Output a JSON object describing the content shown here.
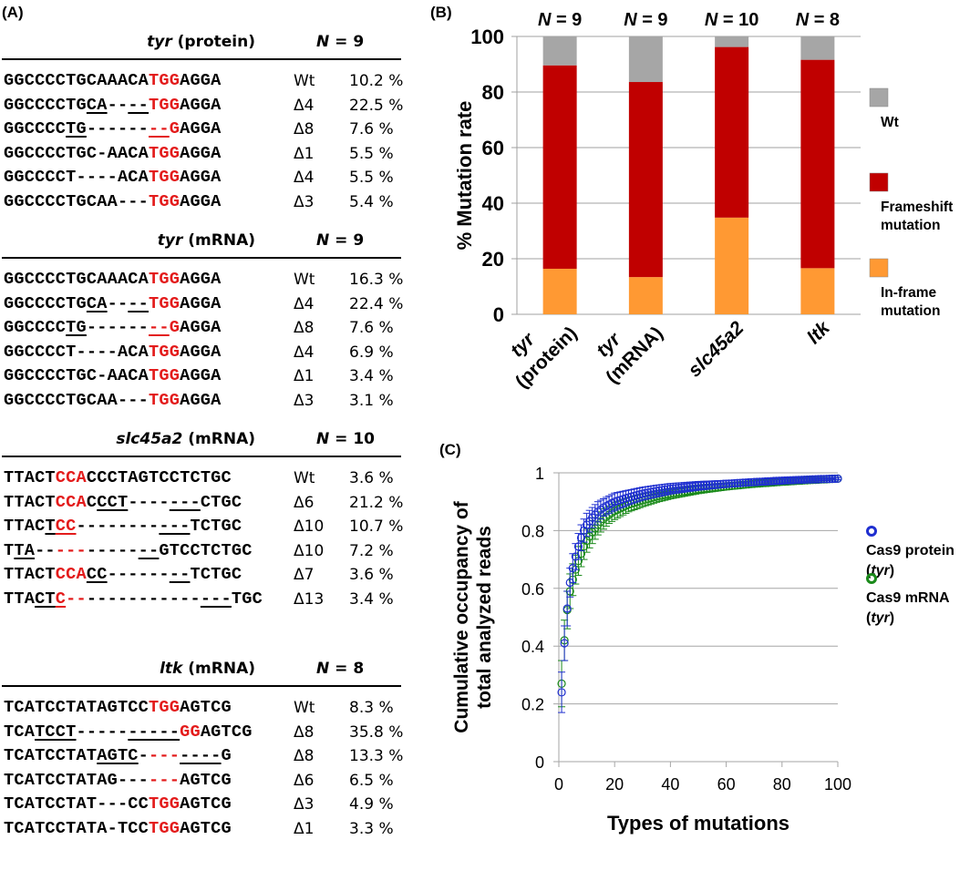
{
  "panel_a": {
    "label": "(A)",
    "blocks": [
      {
        "gene": "tyr",
        "type": "(protein)",
        "n_label": "N",
        "n_value": "= 9",
        "rows": [
          {
            "seq": [
              [
                "GGCCCCTGCAAACA",
                ""
              ],
              [
                "TGG",
                "r"
              ],
              [
                "AGGA",
                ""
              ]
            ],
            "mut": "Wt",
            "pct": "10.2 %"
          },
          {
            "seq": [
              [
                "GGCCCCTG",
                ""
              ],
              [
                "CA",
                "u"
              ],
              [
                "--",
                ""
              ],
              [
                "--",
                "u"
              ],
              [
                "TGG",
                "r"
              ],
              [
                "AGGA",
                ""
              ]
            ],
            "mut": "Δ4",
            "pct": "22.5 %"
          },
          {
            "seq": [
              [
                "GGCCCC",
                ""
              ],
              [
                "TG",
                "u"
              ],
              [
                "------",
                ""
              ],
              [
                "--",
                "ru"
              ],
              [
                "G",
                "r"
              ],
              [
                "AGGA",
                ""
              ]
            ],
            "mut": "Δ8",
            "pct": "7.6 %"
          },
          {
            "seq": [
              [
                "GGCCCCTGC-AACA",
                ""
              ],
              [
                "TGG",
                "r"
              ],
              [
                "AGGA",
                ""
              ]
            ],
            "mut": "Δ1",
            "pct": "5.5 %"
          },
          {
            "seq": [
              [
                "GGCCCCT----ACA",
                ""
              ],
              [
                "TGG",
                "r"
              ],
              [
                "AGGA",
                ""
              ]
            ],
            "mut": "Δ4",
            "pct": "5.5 %"
          },
          {
            "seq": [
              [
                "GGCCCCTGCAA---",
                ""
              ],
              [
                "TGG",
                "r"
              ],
              [
                "AGGA",
                ""
              ]
            ],
            "mut": "Δ3",
            "pct": "5.4 %"
          }
        ]
      },
      {
        "gene": "tyr",
        "type": "(mRNA)",
        "n_label": "N",
        "n_value": "= 9",
        "rows": [
          {
            "seq": [
              [
                "GGCCCCTGCAAACA",
                ""
              ],
              [
                "TGG",
                "r"
              ],
              [
                "AGGA",
                ""
              ]
            ],
            "mut": "Wt",
            "pct": "16.3 %"
          },
          {
            "seq": [
              [
                "GGCCCCTG",
                ""
              ],
              [
                "CA",
                "u"
              ],
              [
                "--",
                ""
              ],
              [
                "--",
                "u"
              ],
              [
                "TGG",
                "r"
              ],
              [
                "AGGA",
                ""
              ]
            ],
            "mut": "Δ4",
            "pct": "22.4 %"
          },
          {
            "seq": [
              [
                "GGCCCC",
                ""
              ],
              [
                "TG",
                "u"
              ],
              [
                "------",
                ""
              ],
              [
                "--",
                "ru"
              ],
              [
                "G",
                "r"
              ],
              [
                "AGGA",
                ""
              ]
            ],
            "mut": "Δ8",
            "pct": "7.6 %"
          },
          {
            "seq": [
              [
                "GGCCCCT----ACA",
                ""
              ],
              [
                "TGG",
                "r"
              ],
              [
                "AGGA",
                ""
              ]
            ],
            "mut": "Δ4",
            "pct": "6.9 %"
          },
          {
            "seq": [
              [
                "GGCCCCTGC-AACA",
                ""
              ],
              [
                "TGG",
                "r"
              ],
              [
                "AGGA",
                ""
              ]
            ],
            "mut": "Δ1",
            "pct": "3.4 %"
          },
          {
            "seq": [
              [
                "GGCCCCTGCAA---",
                ""
              ],
              [
                "TGG",
                "r"
              ],
              [
                "AGGA",
                ""
              ]
            ],
            "mut": "Δ3",
            "pct": "3.1 %"
          }
        ]
      },
      {
        "gene": "slc45a2",
        "type": "(mRNA)",
        "n_label": "N",
        "n_value": "= 10",
        "rows": [
          {
            "seq": [
              [
                "TTACT",
                ""
              ],
              [
                "CCA",
                "r"
              ],
              [
                "CCCTAGTCCTCTGC",
                ""
              ]
            ],
            "mut": "Wt",
            "pct": "3.6 %"
          },
          {
            "seq": [
              [
                "TTACT",
                ""
              ],
              [
                "CCA",
                "r"
              ],
              [
                "C",
                ""
              ],
              [
                "CCT",
                "u"
              ],
              [
                "----",
                ""
              ],
              [
                "---",
                "u"
              ],
              [
                "CTGC",
                ""
              ]
            ],
            "mut": "Δ6",
            "pct": "21.2 %"
          },
          {
            "seq": [
              [
                "TTAC",
                ""
              ],
              [
                "T",
                "u"
              ],
              [
                "CC",
                "ru"
              ],
              [
                "--------",
                ""
              ],
              [
                "---",
                "u"
              ],
              [
                "TCTGC",
                ""
              ]
            ],
            "mut": "Δ10",
            "pct": "10.7 %"
          },
          {
            "seq": [
              [
                "T",
                ""
              ],
              [
                "TA",
                "u"
              ],
              [
                "--",
                ""
              ],
              [
                "---",
                "r"
              ],
              [
                "-----",
                ""
              ],
              [
                "--",
                "u"
              ],
              [
                "GTCCTCTGC",
                ""
              ]
            ],
            "mut": "Δ10",
            "pct": "7.2 %"
          },
          {
            "seq": [
              [
                "TTACT",
                ""
              ],
              [
                "CCA",
                "r"
              ],
              [
                "CC",
                "u"
              ],
              [
                "------",
                ""
              ],
              [
                "--",
                "u"
              ],
              [
                "TCTGC",
                ""
              ]
            ],
            "mut": "Δ7",
            "pct": "3.6 %"
          },
          {
            "seq": [
              [
                "TTA",
                ""
              ],
              [
                "CT",
                "u"
              ],
              [
                "C",
                "ru"
              ],
              [
                "--",
                "r"
              ],
              [
                "-----------",
                ""
              ],
              [
                "---",
                "u"
              ],
              [
                "TGC",
                ""
              ]
            ],
            "mut": "Δ13",
            "pct": "3.4 %"
          }
        ]
      },
      {
        "gene": "ltk",
        "type": "(mRNA)",
        "n_label": "N",
        "n_value": "= 8",
        "rows": [
          {
            "seq": [
              [
                "TCATCCTATAGTCC",
                ""
              ],
              [
                "TGG",
                "r"
              ],
              [
                "AGTCG",
                ""
              ]
            ],
            "mut": "Wt",
            "pct": "8.3 %"
          },
          {
            "seq": [
              [
                "TCA",
                ""
              ],
              [
                "TCCT",
                "u"
              ],
              [
                "-----",
                ""
              ],
              [
                "-----",
                "u"
              ],
              [
                "GG",
                "r"
              ],
              [
                "AGTCG",
                ""
              ]
            ],
            "mut": "Δ8",
            "pct": "35.8 %"
          },
          {
            "seq": [
              [
                "TCATCCTAT",
                ""
              ],
              [
                "AGTC",
                "u"
              ],
              [
                "-",
                ""
              ],
              [
                "---",
                "r"
              ],
              [
                "----",
                "u"
              ],
              [
                "G",
                ""
              ]
            ],
            "mut": "Δ8",
            "pct": "13.3 %"
          },
          {
            "seq": [
              [
                "TCATCCTATAG---",
                ""
              ],
              [
                "---",
                "r"
              ],
              [
                "AGTCG",
                ""
              ]
            ],
            "mut": "Δ6",
            "pct": "6.5 %"
          },
          {
            "seq": [
              [
                "TCATCCTAT---CC",
                ""
              ],
              [
                "TGG",
                "r"
              ],
              [
                "AGTCG",
                ""
              ]
            ],
            "mut": "Δ3",
            "pct": "4.9 %"
          },
          {
            "seq": [
              [
                "TCATCCTATA-TCC",
                ""
              ],
              [
                "TGG",
                "r"
              ],
              [
                "AGTCG",
                ""
              ]
            ],
            "mut": "Δ1",
            "pct": "3.3 %"
          }
        ]
      }
    ]
  },
  "colors": {
    "wt": "#a6a6a6",
    "frameshift": "#c00000",
    "inframe": "#ff9933",
    "pam_red": "#e31b1b",
    "protein_blue": "#1f2fd0",
    "mrna_green": "#1a8a1a",
    "grid": "#999999"
  },
  "chart_data": [
    {
      "panel_label": "(B)",
      "type": "bar",
      "stacked": true,
      "title": "",
      "categories": [
        {
          "gene": "tyr",
          "sub": "(protein)"
        },
        {
          "gene": "tyr",
          "sub": "(mRNA)"
        },
        {
          "gene": "slc45a2",
          "sub": ""
        },
        {
          "gene": "ltk",
          "sub": ""
        }
      ],
      "n_labels": [
        "= 9",
        "= 9",
        "= 10",
        "= 8"
      ],
      "n_prefix": "N",
      "series": [
        {
          "name": "In-frame mutation",
          "color_key": "inframe",
          "values": [
            16.4,
            13.4,
            34.8,
            16.6
          ]
        },
        {
          "name": "Frameshift mutation",
          "color_key": "frameshift",
          "values": [
            73.2,
            70.2,
            61.4,
            75.0
          ]
        },
        {
          "name": "Wt",
          "color_key": "wt",
          "values": [
            10.4,
            16.4,
            3.8,
            8.4
          ]
        }
      ],
      "legend": [
        {
          "line1": "Wt",
          "line2": "",
          "color_key": "wt"
        },
        {
          "line1": "Frameshift",
          "line2": "mutation",
          "color_key": "frameshift"
        },
        {
          "line1": "In-frame",
          "line2": "mutation",
          "color_key": "inframe"
        }
      ],
      "legend_position": "right",
      "xlabel": "",
      "ylabel": "% Mutation rate",
      "ylim": [
        0,
        100
      ],
      "yticks": [
        0,
        20,
        40,
        60,
        80,
        100
      ],
      "grid": true
    },
    {
      "panel_label": "(C)",
      "type": "scatter",
      "title": "",
      "xlabel": "Types of mutations",
      "ylabel_line1": "Cumulative occupancy of",
      "ylabel_line2": "total analyzed reads",
      "xlim": [
        0,
        100
      ],
      "ylim": [
        0,
        1
      ],
      "xticks": [
        0,
        20,
        40,
        60,
        80,
        100
      ],
      "yticks": [
        0,
        0.2,
        0.4,
        0.6,
        0.8,
        1
      ],
      "ytick_labels": [
        "0",
        "0.2",
        "0.4",
        "0.6",
        "0.8",
        "1"
      ],
      "grid": true,
      "legend_position": "right",
      "x": [
        1,
        2,
        3,
        4,
        5,
        6,
        7,
        8,
        9,
        10,
        12,
        14,
        16,
        18,
        20,
        25,
        30,
        35,
        40,
        50,
        60,
        70,
        80,
        90,
        100
      ],
      "series": [
        {
          "name_line1": "Cas9 protein",
          "name_gene": "tyr",
          "color_key": "protein_blue",
          "values": [
            0.24,
            0.41,
            0.53,
            0.62,
            0.67,
            0.71,
            0.745,
            0.775,
            0.8,
            0.82,
            0.845,
            0.865,
            0.88,
            0.89,
            0.9,
            0.915,
            0.928,
            0.937,
            0.945,
            0.955,
            0.962,
            0.968,
            0.973,
            0.977,
            0.98
          ],
          "errors": [
            0.07,
            0.06,
            0.06,
            0.05,
            0.05,
            0.045,
            0.045,
            0.045,
            0.04,
            0.04,
            0.035,
            0.035,
            0.03,
            0.03,
            0.03,
            0.025,
            0.022,
            0.02,
            0.018,
            0.015,
            0.012,
            0.01,
            0.008,
            0.006,
            0.004
          ]
        },
        {
          "name_line1": "Cas9 mRNA",
          "name_gene": "tyr",
          "color_key": "mrna_green",
          "values": [
            0.27,
            0.42,
            0.525,
            0.59,
            0.63,
            0.665,
            0.695,
            0.72,
            0.745,
            0.765,
            0.795,
            0.82,
            0.84,
            0.855,
            0.868,
            0.89,
            0.905,
            0.918,
            0.928,
            0.943,
            0.953,
            0.962,
            0.969,
            0.975,
            0.98
          ],
          "errors": [
            0.08,
            0.07,
            0.065,
            0.06,
            0.055,
            0.05,
            0.05,
            0.045,
            0.045,
            0.04,
            0.04,
            0.035,
            0.035,
            0.03,
            0.03,
            0.025,
            0.022,
            0.02,
            0.018,
            0.015,
            0.012,
            0.01,
            0.008,
            0.006,
            0.004
          ]
        }
      ]
    }
  ]
}
